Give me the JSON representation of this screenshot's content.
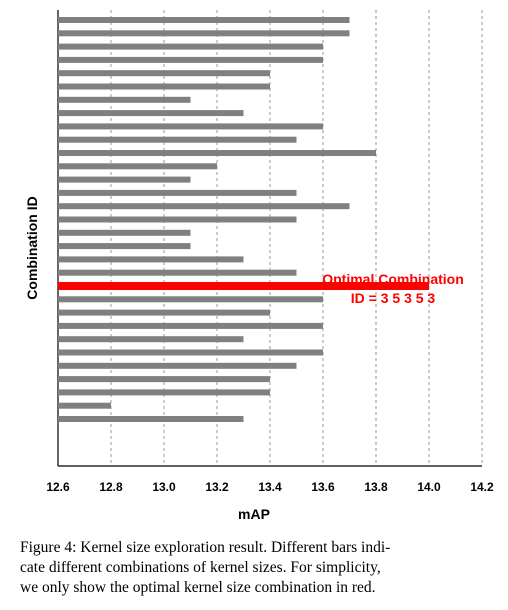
{
  "chart_data": {
    "type": "bar",
    "orientation": "horizontal",
    "xlabel": "mAP",
    "ylabel": "Combination ID",
    "xlim": [
      12.6,
      14.2
    ],
    "xticks": [
      "12.6",
      "12.8",
      "13.0",
      "13.2",
      "13.4",
      "13.6",
      "13.8",
      "14.0",
      "14.2"
    ],
    "grid": "vertical dashed",
    "bar_color": "#808080",
    "highlight_color": "#ff0000",
    "values": [
      13.7,
      13.7,
      13.6,
      13.6,
      13.4,
      13.4,
      13.1,
      13.3,
      13.6,
      13.5,
      13.8,
      13.2,
      13.1,
      13.5,
      13.7,
      13.5,
      13.1,
      13.1,
      13.3,
      13.5,
      14.0,
      13.6,
      13.4,
      13.6,
      13.3,
      13.6,
      13.5,
      13.4,
      13.4,
      12.8,
      13.3
    ],
    "highlight_index": 20,
    "annotation": [
      "Optimal Combination",
      "ID = 3 5 3 5 3"
    ]
  },
  "caption": [
    "Figure 4:  Kernel size exploration result. Different bars indi-",
    "cate different combinations of kernel sizes.  For simplicity,",
    "we only show the optimal kernel size combination in red."
  ]
}
